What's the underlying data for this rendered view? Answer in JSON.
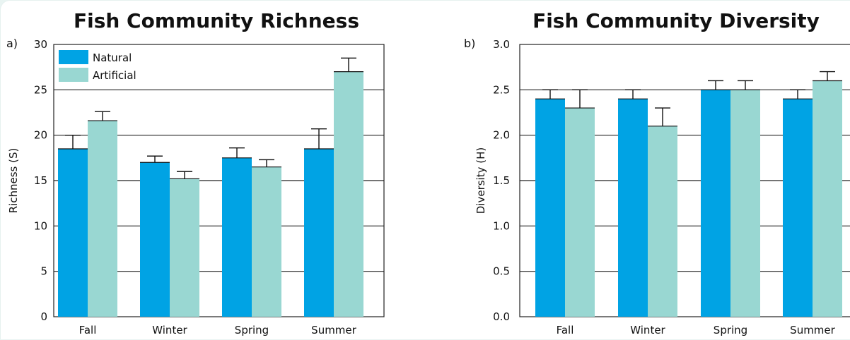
{
  "chart_data": [
    {
      "type": "bar",
      "panel_label": "a)",
      "title": "Fish Community Richness",
      "xlabel": "",
      "ylabel": "Richness (S)",
      "ylim": [
        0,
        30
      ],
      "yticks": [
        "0",
        "5",
        "10",
        "15",
        "20",
        "25",
        "30"
      ],
      "grid": true,
      "legend": "top-left",
      "categories": [
        "Fall",
        "Winter",
        "Spring",
        "Summer"
      ],
      "series": [
        {
          "name": "Natural",
          "color": "#00a3e4",
          "values": [
            18.5,
            17.0,
            17.5,
            18.5
          ],
          "errors": [
            1.5,
            0.7,
            1.1,
            2.2
          ]
        },
        {
          "name": "Artificial",
          "color": "#99d7d2",
          "values": [
            21.6,
            15.2,
            16.5,
            27.0
          ],
          "errors": [
            1.0,
            0.8,
            0.8,
            1.5
          ]
        }
      ]
    },
    {
      "type": "bar",
      "panel_label": "b)",
      "title": "Fish Community Diversity",
      "xlabel": "",
      "ylabel": "Diversity (H)",
      "ylim": [
        0.0,
        3.0
      ],
      "yticks": [
        "0.0",
        "0.5",
        "1.0",
        "1.5",
        "2.0",
        "2.5",
        "3.0"
      ],
      "grid": true,
      "categories": [
        "Fall",
        "Winter",
        "Spring",
        "Summer"
      ],
      "series": [
        {
          "color": "#00a3e4",
          "values": [
            2.4,
            2.4,
            2.5,
            2.4
          ],
          "errors": [
            0.1,
            0.1,
            0.1,
            0.1
          ]
        },
        {
          "color": "#99d7d2",
          "values": [
            2.3,
            2.1,
            2.5,
            2.6
          ],
          "errors": [
            0.2,
            0.2,
            0.1,
            0.1
          ]
        }
      ]
    }
  ]
}
